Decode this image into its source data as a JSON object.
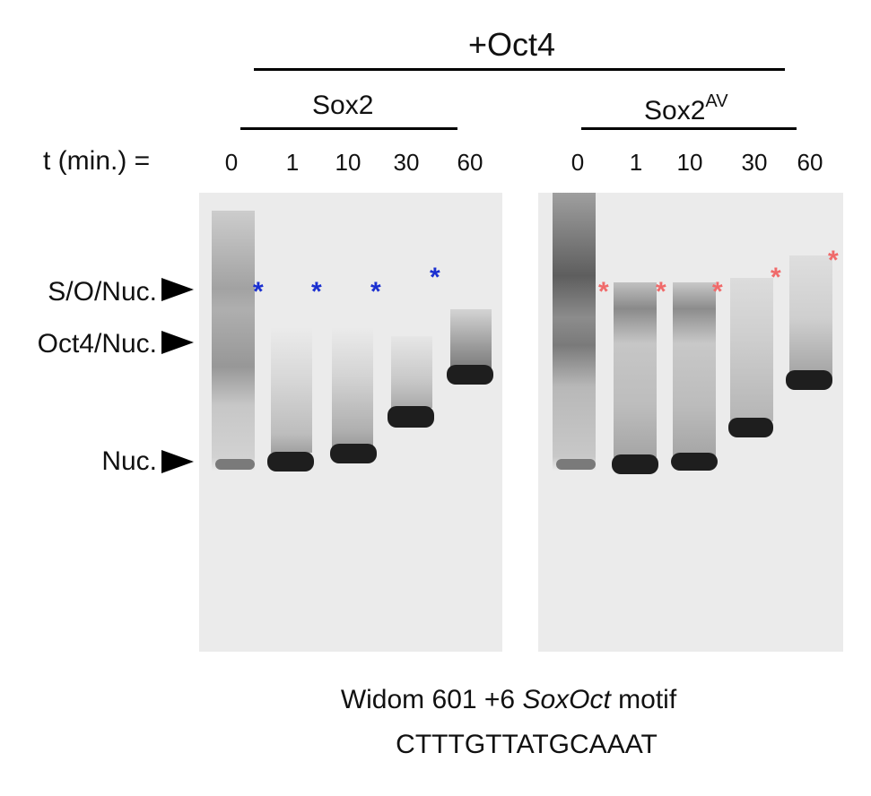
{
  "header": {
    "oct4_label": "+Oct4",
    "group1": "Sox2",
    "group2_base": "Sox2",
    "group2_sup": "AV",
    "time_label": "t (min.) ="
  },
  "lanes": {
    "group1": [
      "0",
      "1",
      "10",
      "30",
      "60"
    ],
    "group2": [
      "0",
      "1",
      "10",
      "30",
      "60"
    ]
  },
  "row_labels": {
    "so_nuc": "S/O/Nuc.",
    "oct4_nuc": "Oct4/Nuc.",
    "nuc": "Nuc."
  },
  "markers": {
    "star_glyph": "*",
    "group1_color": "#1a2fd0",
    "group2_color": "#f06a6a"
  },
  "caption": {
    "line1_a": "Widom 601 +6 ",
    "line1_italic": "SoxOct",
    "line1_b": " motif",
    "line2": "CTTTGTTATGCAAAT"
  }
}
